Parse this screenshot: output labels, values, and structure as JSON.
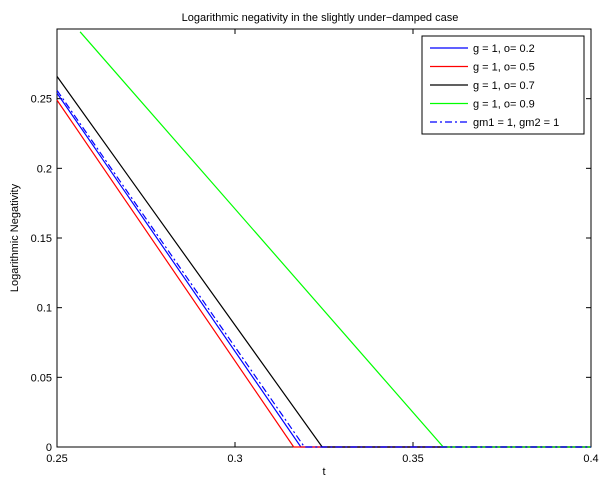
{
  "chart_data": {
    "type": "line",
    "title": "Logarithmic negativity in the slightly under−damped case",
    "xlabel": "t",
    "ylabel": "Logarithmic Negativity",
    "xlim": [
      0.25,
      0.4
    ],
    "ylim": [
      0,
      0.3
    ],
    "xticks": [
      0.25,
      0.3,
      0.35,
      0.4
    ],
    "xtick_labels": [
      "0.25",
      "0.3",
      "0.35",
      "0.4"
    ],
    "yticks": [
      0,
      0.05,
      0.1,
      0.15,
      0.2,
      0.25
    ],
    "ytick_labels": [
      "0",
      "0.05",
      "0.1",
      "0.15",
      "0.2",
      "0.25"
    ],
    "grid": false,
    "legend_position": "top-right",
    "series": [
      {
        "name": "g = 1, o= 0.2",
        "color": "#0000ff",
        "dash": "solid",
        "x": [
          0.25,
          0.3185,
          0.4
        ],
        "y": [
          0.254,
          0,
          0
        ]
      },
      {
        "name": "g = 1, o= 0.5",
        "color": "#ff0000",
        "dash": "solid",
        "x": [
          0.25,
          0.3165,
          0.4
        ],
        "y": [
          0.249,
          0,
          0
        ]
      },
      {
        "name": "g = 1, o= 0.7",
        "color": "#000000",
        "dash": "solid",
        "x": [
          0.25,
          0.3245,
          0.4
        ],
        "y": [
          0.266,
          0,
          0
        ]
      },
      {
        "name": "g = 1, o= 0.9",
        "color": "#00ff00",
        "dash": "solid",
        "x": [
          0.2565,
          0.3585,
          0.4
        ],
        "y": [
          0.298,
          0,
          0
        ]
      },
      {
        "name": "gm1 = 1, gm2 = 1",
        "color": "#0000ff",
        "dash": "dashdot",
        "x": [
          0.25,
          0.3195,
          0.4
        ],
        "y": [
          0.256,
          0,
          0
        ]
      }
    ]
  }
}
